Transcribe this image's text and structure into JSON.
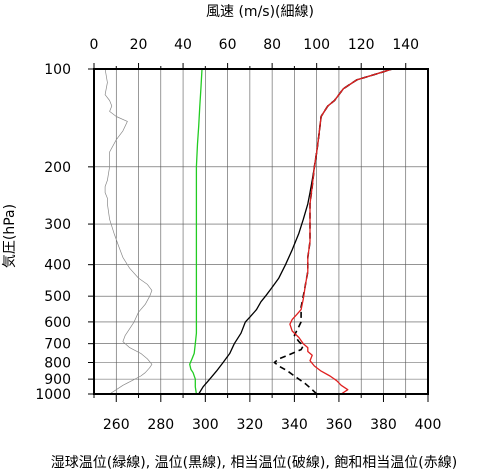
{
  "chart_data": {
    "type": "line",
    "title": "",
    "top_axis": {
      "label": "風速 (m/s)(細線)",
      "range": [
        0,
        150
      ],
      "ticks": [
        "0",
        "20",
        "40",
        "60",
        "80",
        "100",
        "120",
        "140"
      ]
    },
    "bottom_axis": {
      "label": "湿球温位(緑線), 温位(黒線), 相当温位(破線), 飽和相当温位(赤線)",
      "range": [
        250,
        400
      ],
      "ticks": [
        "260",
        "280",
        "300",
        "320",
        "340",
        "360",
        "380",
        "400"
      ]
    },
    "y_axis": {
      "label": "気圧(hPa)",
      "scale": "log",
      "range": [
        1000,
        100
      ],
      "ticks": [
        "100",
        "200",
        "300",
        "400",
        "500",
        "600",
        "700",
        "800",
        "900",
        "1000"
      ]
    },
    "grid": true,
    "series": [
      {
        "key": "wind",
        "axis": "top",
        "color": "#888888",
        "style": "thin",
        "points": [
          [
            7,
            1000
          ],
          [
            10,
            970
          ],
          [
            13,
            940
          ],
          [
            17,
            910
          ],
          [
            21,
            880
          ],
          [
            23,
            860
          ],
          [
            25,
            830
          ],
          [
            26,
            810
          ],
          [
            24,
            780
          ],
          [
            21,
            750
          ],
          [
            16,
            720
          ],
          [
            13,
            690
          ],
          [
            14,
            660
          ],
          [
            16,
            630
          ],
          [
            18,
            600
          ],
          [
            20,
            560
          ],
          [
            23,
            530
          ],
          [
            25,
            500
          ],
          [
            26,
            480
          ],
          [
            24,
            460
          ],
          [
            20,
            440
          ],
          [
            16,
            410
          ],
          [
            13,
            380
          ],
          [
            11,
            350
          ],
          [
            9,
            320
          ],
          [
            7,
            290
          ],
          [
            6,
            260
          ],
          [
            6,
            250
          ],
          [
            5,
            240
          ],
          [
            5,
            230
          ],
          [
            6,
            220
          ],
          [
            7,
            200
          ],
          [
            7,
            180
          ],
          [
            10,
            165
          ],
          [
            13,
            155
          ],
          [
            15,
            145
          ],
          [
            10,
            140
          ],
          [
            7,
            135
          ],
          [
            8,
            130
          ],
          [
            7,
            125
          ],
          [
            5,
            120
          ],
          [
            6,
            110
          ],
          [
            5,
            100
          ]
        ]
      },
      {
        "key": "wet_bulb_pt",
        "axis": "bottom",
        "color": "#22cc22",
        "points": [
          [
            296,
            1000
          ],
          [
            295.5,
            950
          ],
          [
            295.5,
            900
          ],
          [
            294.5,
            860
          ],
          [
            293.5,
            840
          ],
          [
            293,
            810
          ],
          [
            294,
            780
          ],
          [
            295,
            750
          ],
          [
            295.5,
            700
          ],
          [
            296,
            650
          ],
          [
            296,
            600
          ],
          [
            296,
            550
          ],
          [
            296,
            500
          ],
          [
            296,
            450
          ],
          [
            296,
            400
          ],
          [
            296,
            350
          ],
          [
            296,
            300
          ],
          [
            296,
            250
          ],
          [
            296,
            200
          ],
          [
            296.5,
            170
          ],
          [
            297,
            150
          ],
          [
            297.5,
            130
          ],
          [
            298,
            115
          ],
          [
            298.5,
            100
          ]
        ]
      },
      {
        "key": "potential_temperature",
        "axis": "bottom",
        "color": "#000000",
        "points": [
          [
            297,
            1000
          ],
          [
            299,
            950
          ],
          [
            302,
            900
          ],
          [
            305,
            850
          ],
          [
            308,
            800
          ],
          [
            311,
            750
          ],
          [
            313,
            700
          ],
          [
            316,
            650
          ],
          [
            318,
            600
          ],
          [
            320,
            580
          ],
          [
            323,
            550
          ],
          [
            325,
            520
          ],
          [
            327,
            500
          ],
          [
            330,
            470
          ],
          [
            333,
            440
          ],
          [
            336,
            400
          ],
          [
            339,
            360
          ],
          [
            342,
            320
          ],
          [
            344,
            290
          ],
          [
            346,
            260
          ],
          [
            347,
            240
          ],
          [
            348,
            220
          ],
          [
            349,
            200
          ],
          [
            350,
            180
          ],
          [
            351,
            160
          ],
          [
            352,
            140
          ],
          [
            355,
            130
          ],
          [
            358,
            125
          ],
          [
            362,
            115
          ],
          [
            368,
            108
          ],
          [
            376,
            104
          ],
          [
            382,
            101
          ],
          [
            384,
            100
          ]
        ]
      },
      {
        "key": "equivalent_pt",
        "axis": "bottom",
        "color": "#000000",
        "dashed": true,
        "points": [
          [
            350,
            1000
          ],
          [
            348,
            970
          ],
          [
            345,
            930
          ],
          [
            340,
            880
          ],
          [
            337,
            850
          ],
          [
            333,
            820
          ],
          [
            331,
            800
          ],
          [
            333,
            780
          ],
          [
            337,
            760
          ],
          [
            341,
            740
          ],
          [
            343,
            730
          ],
          [
            344,
            710
          ],
          [
            342,
            690
          ],
          [
            340,
            660
          ],
          [
            341,
            640
          ],
          [
            342,
            620
          ],
          [
            343,
            600
          ],
          [
            343,
            580
          ],
          [
            343,
            560
          ],
          [
            343,
            540
          ],
          [
            344,
            500
          ],
          [
            345,
            460
          ],
          [
            346,
            420
          ],
          [
            346,
            380
          ],
          [
            347,
            340
          ],
          [
            347,
            300
          ],
          [
            347,
            260
          ],
          [
            348,
            230
          ],
          [
            349,
            200
          ],
          [
            350,
            180
          ],
          [
            351,
            160
          ],
          [
            352,
            140
          ],
          [
            355,
            130
          ],
          [
            358,
            125
          ],
          [
            362,
            115
          ],
          [
            368,
            108
          ],
          [
            376,
            104
          ],
          [
            382,
            101
          ],
          [
            384,
            100
          ]
        ]
      },
      {
        "key": "saturated_equivalent_pt",
        "axis": "bottom",
        "color": "#e02020",
        "points": [
          [
            361,
            1000
          ],
          [
            364,
            970
          ],
          [
            361,
            940
          ],
          [
            359,
            910
          ],
          [
            356,
            880
          ],
          [
            352,
            850
          ],
          [
            349,
            820
          ],
          [
            347,
            790
          ],
          [
            348,
            760
          ],
          [
            346,
            740
          ],
          [
            346,
            720
          ],
          [
            344,
            700
          ],
          [
            342,
            670
          ],
          [
            339,
            640
          ],
          [
            338,
            610
          ],
          [
            339,
            590
          ],
          [
            341,
            570
          ],
          [
            343,
            550
          ],
          [
            344,
            510
          ],
          [
            345,
            460
          ],
          [
            346,
            420
          ],
          [
            346,
            380
          ],
          [
            347,
            340
          ],
          [
            347,
            300
          ],
          [
            347,
            260
          ],
          [
            348,
            230
          ],
          [
            349,
            200
          ],
          [
            350,
            180
          ],
          [
            351,
            160
          ],
          [
            352,
            140
          ],
          [
            355,
            130
          ],
          [
            358,
            125
          ],
          [
            362,
            115
          ],
          [
            368,
            108
          ],
          [
            376,
            104
          ],
          [
            382,
            101
          ],
          [
            384,
            100
          ]
        ]
      }
    ]
  }
}
